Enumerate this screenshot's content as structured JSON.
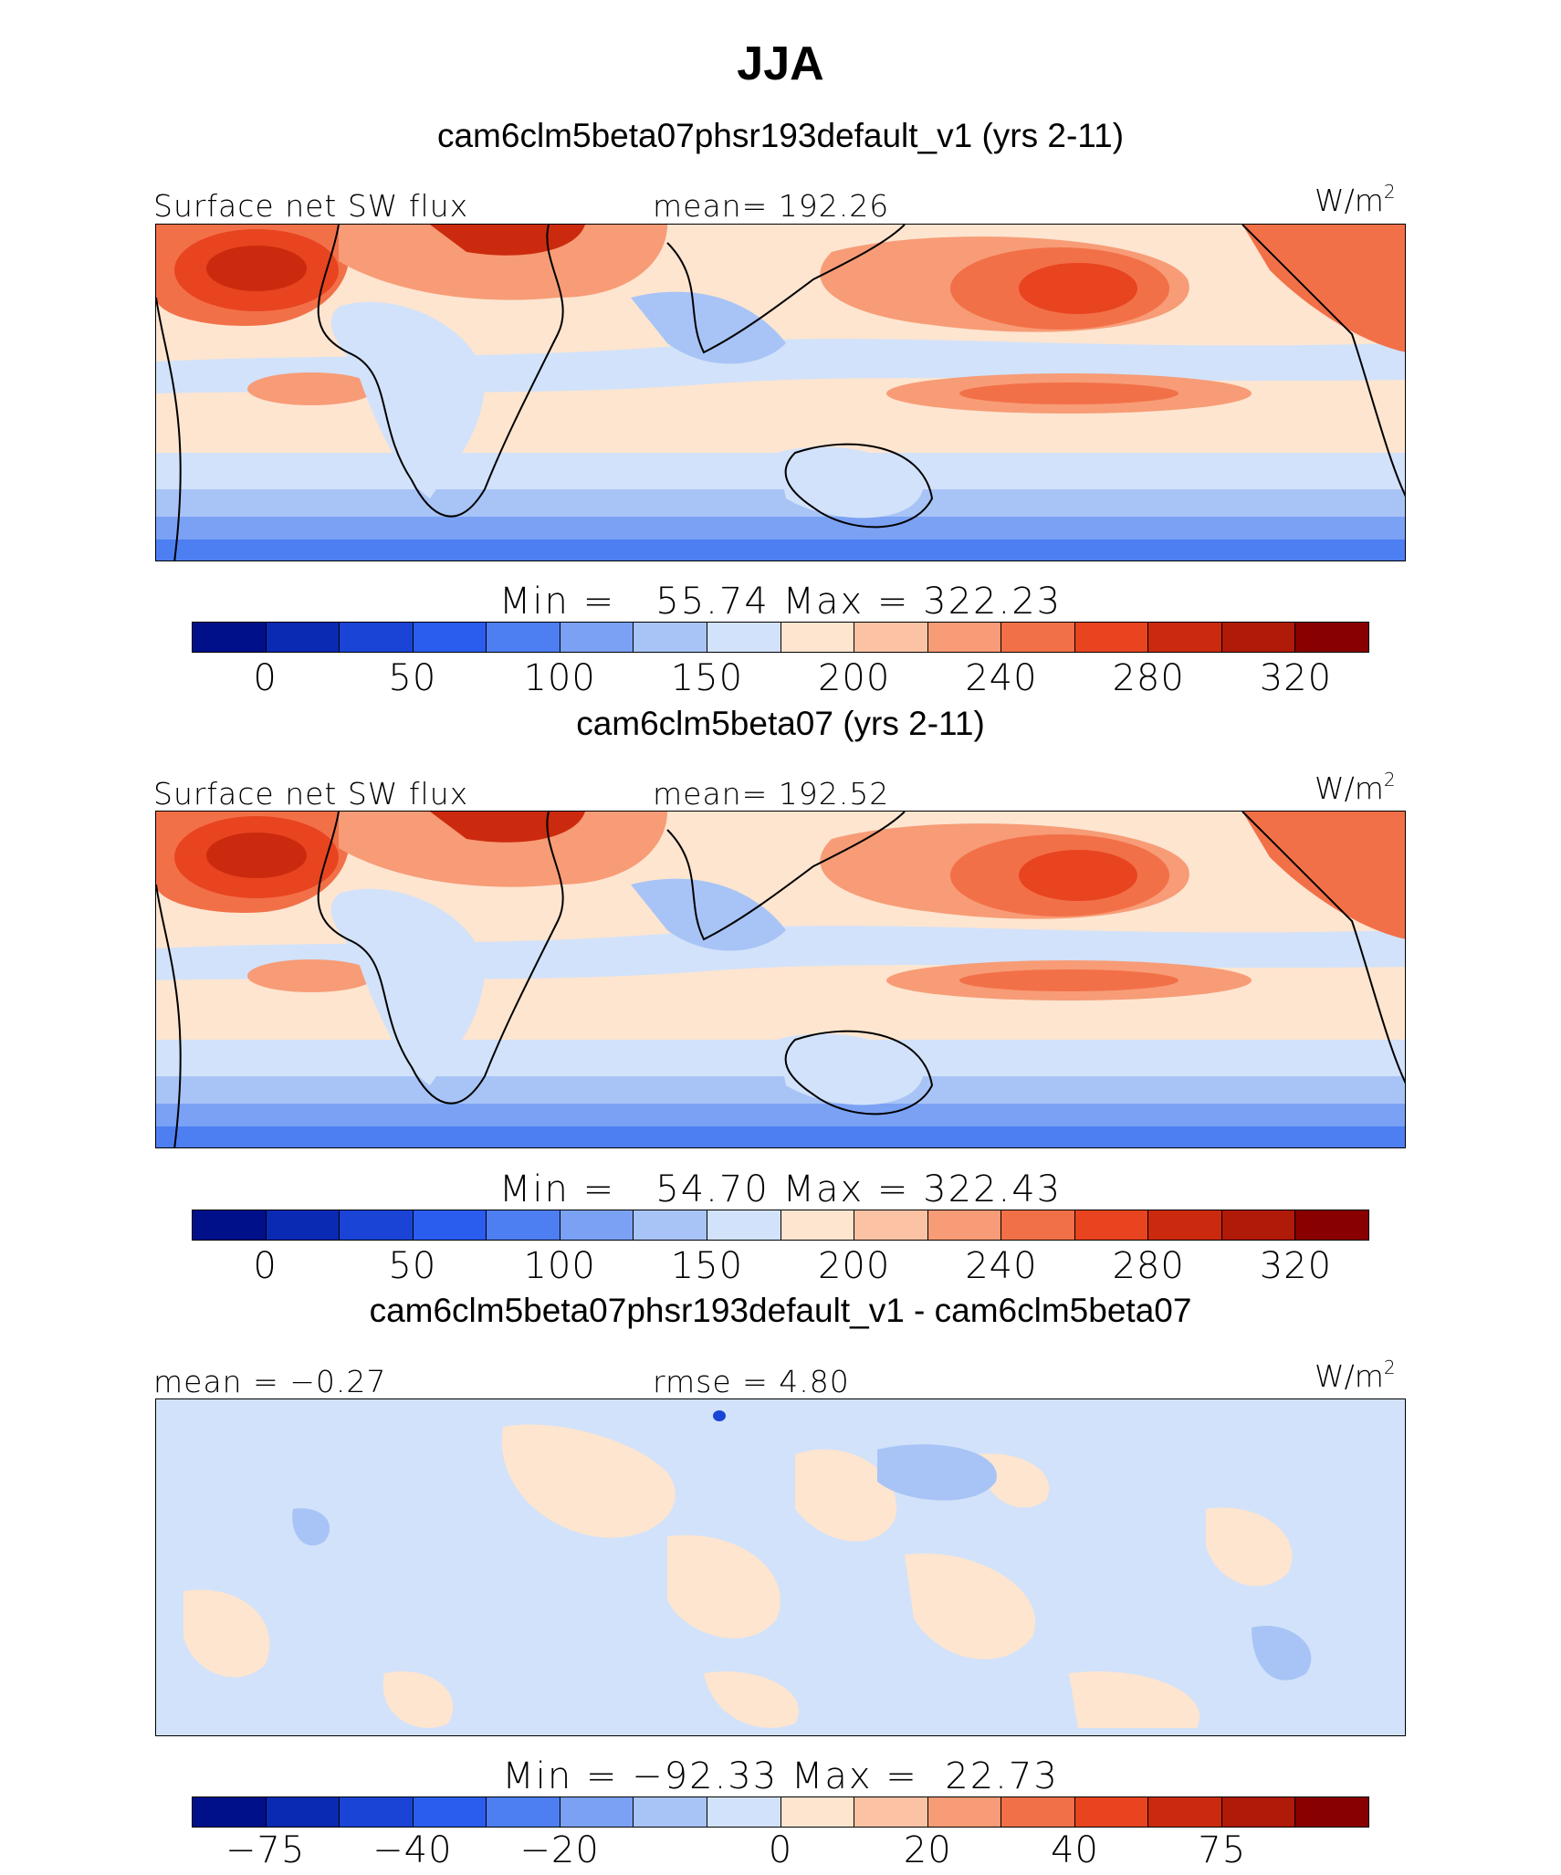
{
  "title": "JJA",
  "units": {
    "base": "W/m",
    "exp": "2"
  },
  "panels": [
    {
      "case_title": "cam6clm5beta07phsr193default_v1 (yrs 2-11)",
      "left_label": "Surface net SW flux",
      "center_label": "mean= 192.26",
      "min_max": "Min =   55.74 Max = 322.23",
      "tick_labels": [
        "0",
        "50",
        "100",
        "150",
        "200",
        "240",
        "280",
        "320"
      ],
      "colors": [
        "#00108a",
        "#0a2ab4",
        "#1a44d6",
        "#2a5cee",
        "#4d7ef2",
        "#7aa1f4",
        "#a8c4f6",
        "#d2e2fa",
        "#fde5d0",
        "#fbc3a4",
        "#f79c76",
        "#f27048",
        "#e84420",
        "#cc2a0e",
        "#b01a08",
        "#880000"
      ]
    },
    {
      "case_title": "cam6clm5beta07 (yrs 2-11)",
      "left_label": "Surface net SW flux",
      "center_label": "mean= 192.52",
      "min_max": "Min =   54.70 Max = 322.43",
      "tick_labels": [
        "0",
        "50",
        "100",
        "150",
        "200",
        "240",
        "280",
        "320"
      ],
      "colors": [
        "#00108a",
        "#0a2ab4",
        "#1a44d6",
        "#2a5cee",
        "#4d7ef2",
        "#7aa1f4",
        "#a8c4f6",
        "#d2e2fa",
        "#fde5d0",
        "#fbc3a4",
        "#f79c76",
        "#f27048",
        "#e84420",
        "#cc2a0e",
        "#b01a08",
        "#880000"
      ]
    },
    {
      "case_title": "cam6clm5beta07phsr193default_v1 - cam6clm5beta07",
      "left_label": "mean =  −0.27",
      "center_label": "rmse =   4.80",
      "min_max": "Min = −92.33 Max =  22.73",
      "tick_labels": [
        "−75",
        "−40",
        "−20",
        "0",
        "20",
        "40",
        "75"
      ],
      "colors": [
        "#00108a",
        "#0a2ab4",
        "#1a44d6",
        "#2a5cee",
        "#4d7ef2",
        "#7aa1f4",
        "#a8c4f6",
        "#d2e2fa",
        "#fde5d0",
        "#fbc3a4",
        "#f79c76",
        "#f27048",
        "#e84420",
        "#cc2a0e",
        "#b01a08",
        "#880000"
      ]
    }
  ]
}
